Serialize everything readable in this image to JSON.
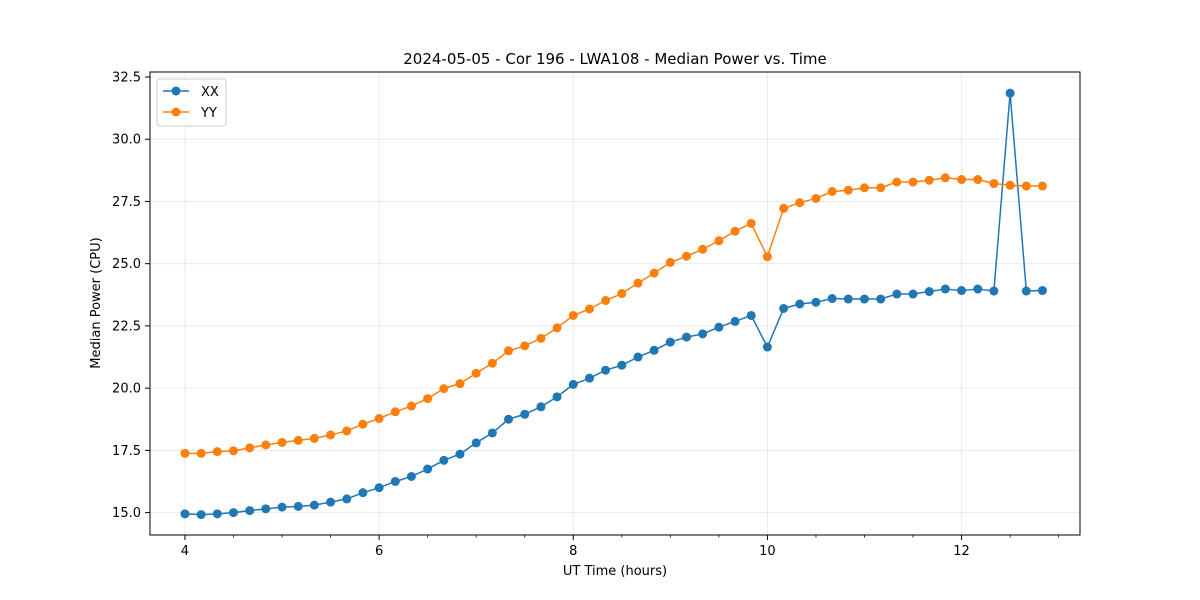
{
  "chart_data": {
    "type": "line",
    "title": "2024-05-05 - Cor 196 - LWA108 - Median Power vs. Time",
    "xlabel": "UT Time (hours)",
    "ylabel": "Median Power (CPU)",
    "xlim": [
      3.64,
      13.22
    ],
    "ylim": [
      14.1,
      32.7
    ],
    "xticks": [
      4,
      6,
      8,
      10,
      12
    ],
    "xtick_labels": [
      "4",
      "6",
      "8",
      "10",
      "12"
    ],
    "yticks": [
      15.0,
      17.5,
      20.0,
      22.5,
      25.0,
      27.5,
      30.0,
      32.5
    ],
    "ytick_labels": [
      "15.0",
      "17.5",
      "20.0",
      "22.5",
      "25.0",
      "27.5",
      "30.0",
      "32.5"
    ],
    "grid": true,
    "legend_position": "top-left",
    "x": [
      4.0,
      4.167,
      4.333,
      4.5,
      4.667,
      4.833,
      5.0,
      5.167,
      5.333,
      5.5,
      5.667,
      5.833,
      6.0,
      6.167,
      6.333,
      6.5,
      6.667,
      6.833,
      7.0,
      7.167,
      7.333,
      7.5,
      7.667,
      7.833,
      8.0,
      8.167,
      8.333,
      8.5,
      8.667,
      8.833,
      9.0,
      9.167,
      9.333,
      9.5,
      9.667,
      9.833,
      10.0,
      10.167,
      10.333,
      10.5,
      10.667,
      10.833,
      11.0,
      11.167,
      11.333,
      11.5,
      11.667,
      11.833,
      12.0,
      12.167,
      12.333,
      12.5,
      12.667,
      12.833
    ],
    "series": [
      {
        "name": "XX",
        "color": "#1f77b4",
        "values": [
          14.95,
          14.92,
          14.95,
          15.0,
          15.08,
          15.15,
          15.22,
          15.25,
          15.3,
          15.42,
          15.55,
          15.8,
          16.0,
          16.25,
          16.45,
          16.75,
          17.1,
          17.35,
          17.8,
          18.2,
          18.75,
          18.95,
          19.25,
          19.65,
          20.15,
          20.4,
          20.72,
          20.92,
          21.25,
          21.52,
          21.85,
          22.05,
          22.18,
          22.45,
          22.68,
          22.92,
          21.65,
          23.2,
          23.38,
          23.45,
          23.6,
          23.58,
          23.58,
          23.58,
          23.78,
          23.78,
          23.88,
          23.98,
          23.92,
          23.98,
          23.9,
          31.85,
          23.9,
          23.92
        ]
      },
      {
        "name": "YY",
        "color": "#ff7f0e",
        "values": [
          17.38,
          17.38,
          17.45,
          17.48,
          17.6,
          17.72,
          17.82,
          17.9,
          17.98,
          18.12,
          18.28,
          18.55,
          18.78,
          19.05,
          19.28,
          19.58,
          19.98,
          20.18,
          20.6,
          21.0,
          21.5,
          21.7,
          22.0,
          22.42,
          22.92,
          23.18,
          23.52,
          23.8,
          24.22,
          24.62,
          25.05,
          25.3,
          25.58,
          25.92,
          26.3,
          26.62,
          25.28,
          27.22,
          27.45,
          27.62,
          27.9,
          27.95,
          28.05,
          28.05,
          28.28,
          28.28,
          28.35,
          28.45,
          28.38,
          28.38,
          28.22,
          28.15,
          28.12,
          28.12
        ]
      }
    ]
  }
}
